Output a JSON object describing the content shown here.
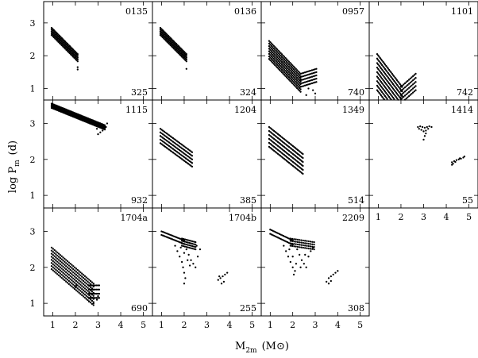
{
  "chart_data": {
    "type": "scatter",
    "xlabel": "M",
    "xlabel_sub": "2m",
    "xlabel_unit": "(M",
    "xlabel_unit_symbol": "⊙",
    "xlabel_unit_close": ")",
    "ylabel": "log P",
    "ylabel_sub": "m",
    "ylabel_unit": "(d)",
    "xlim": [
      0.6,
      5.4
    ],
    "ylim": [
      0.65,
      3.65
    ],
    "x_ticks": [
      "1",
      "2",
      "3",
      "4",
      "5"
    ],
    "y_ticks": [
      "1",
      "2",
      "3"
    ],
    "panels": [
      {
        "id": "0135",
        "count": "325",
        "groups": [
          {
            "kind": "grid",
            "x0": 0.95,
            "y0": 2.85,
            "x1": 2.1,
            "y1": 2.05,
            "nLines": 5,
            "spread": 0.22,
            "nPts": 24
          }
        ],
        "extra": [
          [
            2.05,
            2.05
          ],
          [
            2.1,
            1.65
          ],
          [
            2.1,
            1.58
          ]
        ]
      },
      {
        "id": "0136",
        "count": "324",
        "groups": [
          {
            "kind": "grid",
            "x0": 0.95,
            "y0": 2.85,
            "x1": 2.1,
            "y1": 2.05,
            "nLines": 5,
            "spread": 0.22,
            "nPts": 24
          }
        ],
        "extra": [
          [
            2.05,
            2.03
          ],
          [
            2.1,
            1.6
          ]
        ]
      },
      {
        "id": "0957",
        "count": "740",
        "groups": [
          {
            "kind": "grid",
            "x0": 0.95,
            "y0": 2.45,
            "x1": 2.35,
            "y1": 1.45,
            "nLines": 8,
            "spread": 0.55,
            "nPts": 28
          },
          {
            "kind": "grid",
            "x0": 2.35,
            "y0": 1.45,
            "x1": 3.05,
            "y1": 1.6,
            "nLines": 5,
            "spread": 0.4,
            "nPts": 12
          }
        ],
        "extra": [
          [
            2.6,
            0.8
          ],
          [
            2.9,
            0.95
          ],
          [
            3.0,
            0.85
          ],
          [
            2.7,
            1.0
          ]
        ]
      },
      {
        "id": "1101",
        "count": "742",
        "groups": [
          {
            "kind": "grid",
            "x0": 0.95,
            "y0": 2.05,
            "x1": 2.05,
            "y1": 1.05,
            "nLines": 9,
            "spread": 1.1,
            "nPts": 26
          },
          {
            "kind": "grid",
            "x0": 2.0,
            "y0": 1.05,
            "x1": 2.65,
            "y1": 1.45,
            "nLines": 5,
            "spread": 0.5,
            "nPts": 12
          }
        ],
        "extra": []
      },
      {
        "id": "1115",
        "count": "932",
        "groups": [
          {
            "kind": "grid",
            "x0": 0.95,
            "y0": 3.55,
            "x1": 3.3,
            "y1": 2.95,
            "nLines": 4,
            "spread": 0.12,
            "nPts": 46
          }
        ],
        "extra": [
          [
            3.0,
            2.7
          ],
          [
            3.1,
            2.75
          ],
          [
            3.2,
            2.8
          ],
          [
            3.35,
            2.9
          ],
          [
            2.95,
            2.85
          ],
          [
            3.4,
            3.0
          ]
        ]
      },
      {
        "id": "1204",
        "count": "385",
        "groups": [
          {
            "kind": "grid",
            "x0": 0.95,
            "y0": 2.85,
            "x1": 2.35,
            "y1": 2.2,
            "nLines": 5,
            "spread": 0.4,
            "nPts": 26
          }
        ],
        "extra": []
      },
      {
        "id": "1349",
        "count": "514",
        "groups": [
          {
            "kind": "grid",
            "x0": 0.95,
            "y0": 2.9,
            "x1": 2.45,
            "y1": 2.15,
            "nLines": 6,
            "spread": 0.55,
            "nPts": 28
          }
        ],
        "extra": []
      },
      {
        "id": "1414",
        "count": "55",
        "groups": [],
        "extra": [
          [
            2.75,
            2.9
          ],
          [
            2.85,
            2.92
          ],
          [
            2.95,
            2.9
          ],
          [
            3.05,
            2.88
          ],
          [
            3.15,
            2.9
          ],
          [
            3.25,
            2.92
          ],
          [
            3.35,
            2.9
          ],
          [
            2.9,
            2.82
          ],
          [
            3.0,
            2.78
          ],
          [
            3.1,
            2.72
          ],
          [
            3.05,
            2.65
          ],
          [
            3.0,
            2.55
          ],
          [
            3.1,
            2.8
          ],
          [
            2.8,
            2.85
          ],
          [
            3.2,
            2.85
          ],
          [
            4.25,
            1.92
          ],
          [
            4.35,
            1.95
          ],
          [
            4.45,
            1.98
          ],
          [
            4.55,
            2.0
          ],
          [
            4.65,
            2.02
          ],
          [
            4.75,
            2.05
          ],
          [
            4.8,
            2.08
          ],
          [
            4.3,
            1.88
          ],
          [
            4.4,
            1.93
          ],
          [
            4.6,
            2.03
          ],
          [
            4.25,
            1.85
          ]
        ]
      },
      {
        "id": "1704a",
        "count": "690",
        "groups": [
          {
            "kind": "grid",
            "x0": 0.95,
            "y0": 2.55,
            "x1": 2.8,
            "y1": 1.55,
            "nLines": 8,
            "spread": 0.6,
            "nPts": 30
          },
          {
            "kind": "grid",
            "x0": 2.6,
            "y0": 1.5,
            "x1": 3.05,
            "y1": 1.5,
            "nLines": 4,
            "spread": 0.35,
            "nPts": 8
          }
        ],
        "extra": [
          [
            2.0,
            1.45
          ],
          [
            2.05,
            1.5
          ],
          [
            2.6,
            1.05
          ],
          [
            2.8,
            1.0
          ],
          [
            3.0,
            1.2
          ],
          [
            2.95,
            1.1
          ]
        ]
      },
      {
        "id": "1704b",
        "count": "255",
        "groups": [
          {
            "kind": "grid",
            "x0": 1.0,
            "y0": 3.0,
            "x1": 2.0,
            "y1": 2.75,
            "nLines": 2,
            "spread": 0.1,
            "nPts": 18
          },
          {
            "kind": "grid",
            "x0": 1.9,
            "y0": 2.8,
            "x1": 2.5,
            "y1": 2.7,
            "nLines": 4,
            "spread": 0.2,
            "nPts": 10
          }
        ],
        "extra": [
          [
            1.6,
            2.6
          ],
          [
            1.7,
            2.45
          ],
          [
            1.8,
            2.3
          ],
          [
            1.9,
            2.15
          ],
          [
            1.95,
            2.0
          ],
          [
            2.0,
            1.85
          ],
          [
            2.05,
            1.7
          ],
          [
            2.0,
            1.55
          ],
          [
            2.1,
            2.5
          ],
          [
            2.2,
            2.35
          ],
          [
            2.3,
            2.2
          ],
          [
            2.4,
            2.1
          ],
          [
            2.5,
            2.0
          ],
          [
            2.6,
            2.3
          ],
          [
            2.7,
            2.5
          ],
          [
            2.55,
            2.6
          ],
          [
            2.0,
            2.4
          ],
          [
            1.85,
            2.55
          ],
          [
            2.15,
            2.2
          ],
          [
            2.25,
            2.05
          ],
          [
            3.5,
            1.65
          ],
          [
            3.6,
            1.7
          ],
          [
            3.7,
            1.75
          ],
          [
            3.8,
            1.8
          ],
          [
            3.9,
            1.85
          ],
          [
            3.65,
            1.55
          ],
          [
            3.75,
            1.6
          ],
          [
            3.55,
            1.75
          ]
        ]
      },
      {
        "id": "2209",
        "count": "308",
        "groups": [
          {
            "kind": "grid",
            "x0": 1.0,
            "y0": 3.05,
            "x1": 2.0,
            "y1": 2.75,
            "nLines": 2,
            "spread": 0.12,
            "nPts": 18
          },
          {
            "kind": "grid",
            "x0": 1.9,
            "y0": 2.8,
            "x1": 2.95,
            "y1": 2.7,
            "nLines": 4,
            "spread": 0.2,
            "nPts": 14
          }
        ],
        "extra": [
          [
            1.6,
            2.6
          ],
          [
            1.7,
            2.45
          ],
          [
            1.8,
            2.3
          ],
          [
            1.9,
            2.15
          ],
          [
            2.0,
            2.0
          ],
          [
            2.05,
            1.8
          ],
          [
            2.1,
            1.9
          ],
          [
            2.0,
            2.3
          ],
          [
            2.2,
            2.5
          ],
          [
            2.3,
            2.35
          ],
          [
            2.4,
            2.2
          ],
          [
            2.5,
            2.1
          ],
          [
            2.6,
            2.0
          ],
          [
            2.7,
            2.3
          ],
          [
            2.8,
            2.45
          ],
          [
            2.9,
            2.55
          ],
          [
            2.15,
            2.1
          ],
          [
            2.35,
            2.0
          ],
          [
            1.85,
            2.5
          ],
          [
            2.55,
            2.35
          ],
          [
            3.5,
            1.6
          ],
          [
            3.6,
            1.7
          ],
          [
            3.7,
            1.75
          ],
          [
            3.8,
            1.8
          ],
          [
            3.9,
            1.85
          ],
          [
            4.0,
            1.9
          ],
          [
            3.6,
            1.55
          ],
          [
            3.7,
            1.62
          ]
        ]
      }
    ]
  }
}
